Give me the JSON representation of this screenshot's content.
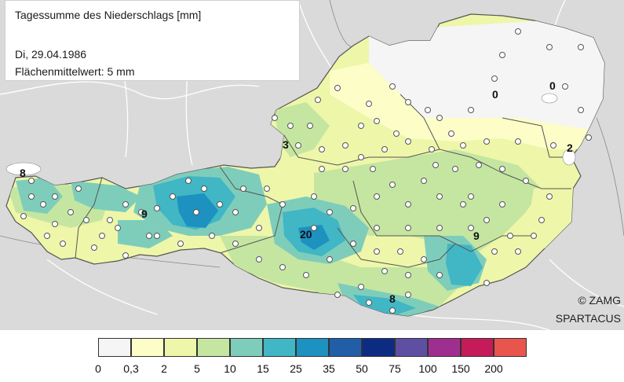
{
  "info": {
    "title": "Tagessumme des Niederschlags [mm]",
    "date": "Di, 29.04.1986",
    "area_mean": "Flächenmittelwert: 5 mm"
  },
  "credits": {
    "line1": "© ZAMG",
    "line2": "SPARTACUS"
  },
  "value_labels": [
    "8",
    "9",
    "3",
    "20",
    "0",
    "0",
    "2",
    "9",
    "8"
  ],
  "legend": {
    "colors": [
      "#f5f5f5",
      "#fdfdc7",
      "#eef6a9",
      "#c5e6a1",
      "#7ecdbb",
      "#41b6c4",
      "#1d91c0",
      "#225ea8",
      "#0c2c84",
      "#5e4fa2",
      "#9e2f90",
      "#c51b58",
      "#e8554d"
    ],
    "ticks": [
      "0",
      "0,3",
      "2",
      "5",
      "10",
      "15",
      "25",
      "35",
      "50",
      "75",
      "100",
      "150",
      "200"
    ]
  },
  "map_colors": {
    "land_bg": "#dadada",
    "lakes": "#ffffff",
    "border": "#555555",
    "station": "#ffffff"
  }
}
